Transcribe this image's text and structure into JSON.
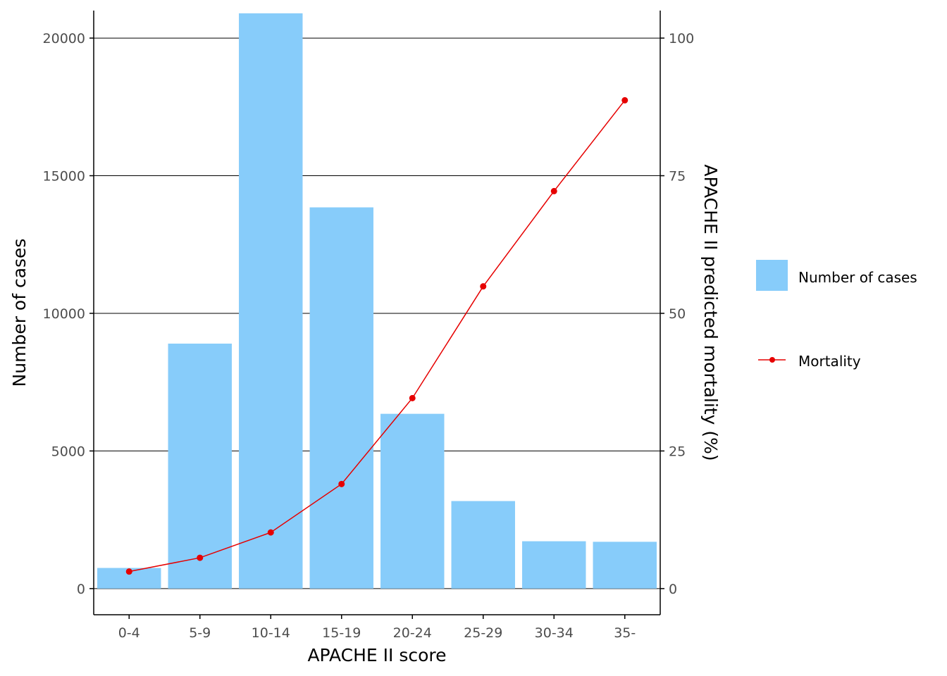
{
  "chart_data": {
    "type": "bar",
    "categories": [
      "0-4",
      "5-9",
      "10-14",
      "15-19",
      "20-24",
      "25-29",
      "30-34",
      "35-"
    ],
    "series": [
      {
        "name": "Number of cases",
        "type": "bar",
        "axis": "left",
        "values": [
          750,
          8900,
          20900,
          13850,
          6350,
          3180,
          1720,
          1700
        ]
      },
      {
        "name": "Mortality",
        "type": "line",
        "axis": "right",
        "values": [
          3.1,
          5.6,
          10.2,
          19.0,
          34.6,
          54.9,
          72.2,
          88.7
        ]
      }
    ],
    "xlabel": "APACHE II score",
    "ylabel": "Number of cases",
    "y2label": "APACHE II predicted mortality (%)",
    "ylim": [
      -950,
      21000
    ],
    "y2lim": [
      -4.75,
      105
    ],
    "yticks": [
      0,
      5000,
      10000,
      15000,
      20000
    ],
    "y2ticks": [
      0,
      25,
      50,
      75,
      100
    ],
    "grid": "horizontal major lines",
    "legend_position": "right",
    "colors": {
      "bars": "#87ccfa",
      "line": "#e60000",
      "grid": "#000000",
      "tick_text": "#4d4d4d"
    }
  }
}
